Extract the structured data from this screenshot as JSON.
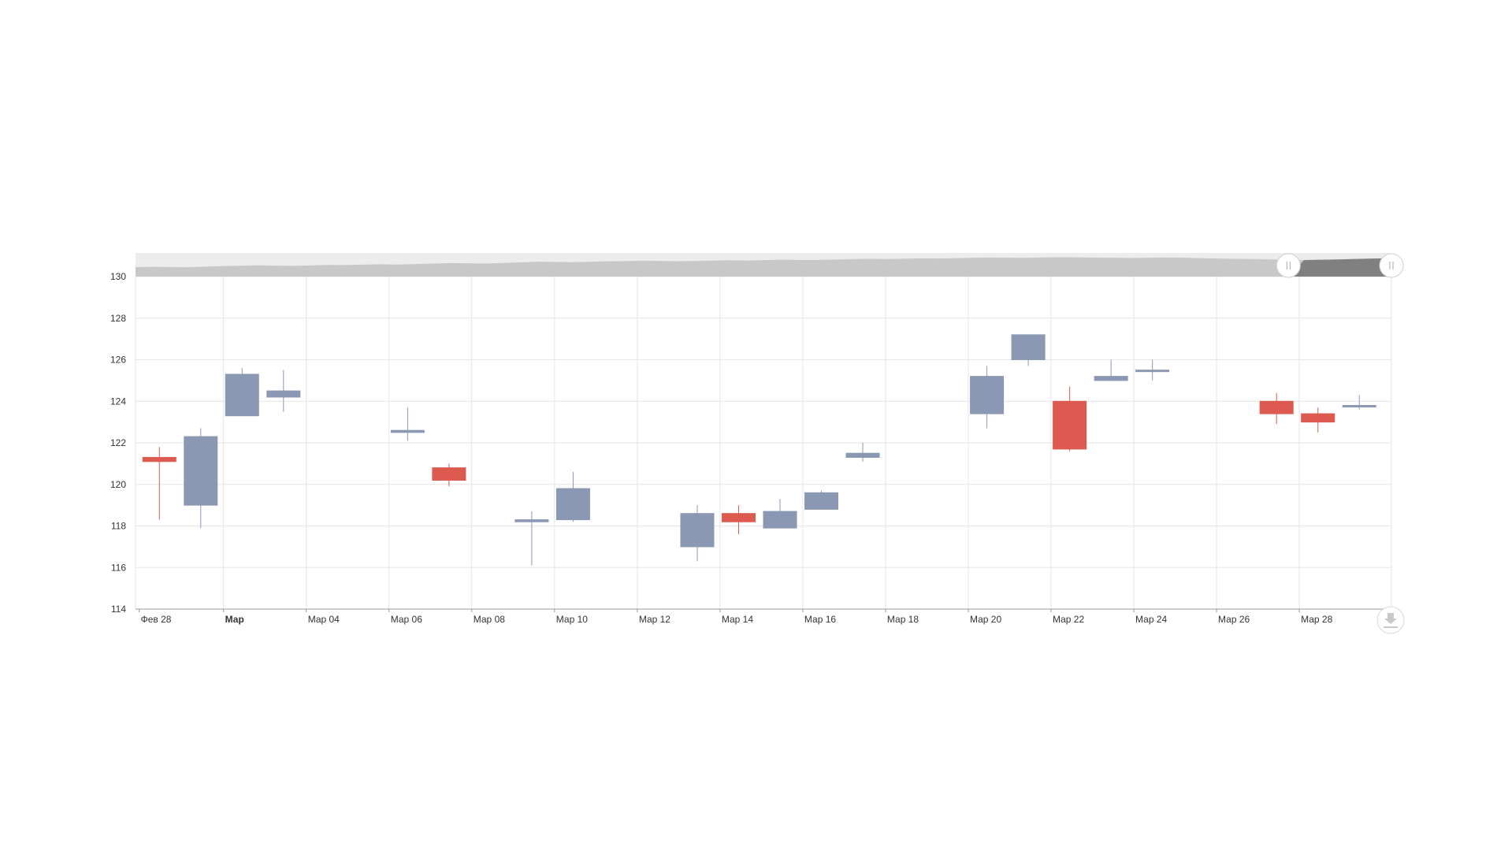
{
  "chart_data": {
    "type": "candlestick",
    "y_ticks": [
      "130",
      "128",
      "126",
      "124",
      "122",
      "120",
      "118",
      "116",
      "114"
    ],
    "ylim": [
      114,
      130
    ],
    "x_ticks": [
      "Фев 28",
      "Мар",
      "Мар 04",
      "Мар 06",
      "Мар 08",
      "Мар 10",
      "Мар 12",
      "Мар 14",
      "Мар 16",
      "Мар 18",
      "Мар 20",
      "Мар 22",
      "Мар 24",
      "Мар 26",
      "Мар 28"
    ],
    "x_tick_bold": [
      false,
      true,
      false,
      false,
      false,
      false,
      false,
      false,
      false,
      false,
      false,
      false,
      false,
      false,
      false
    ],
    "x_day_range": [
      0,
      30
    ],
    "grid": true,
    "colors": {
      "up": "#8b98b3",
      "down": "#dc5a4f",
      "navigator_fill": "#c8c8c8",
      "navigator_selected": "#808080"
    },
    "candles": [
      {
        "day": 0,
        "open": 121.3,
        "high": 121.8,
        "low": 118.3,
        "close": 121.1
      },
      {
        "day": 1,
        "open": 119.0,
        "high": 122.7,
        "low": 117.9,
        "close": 122.3
      },
      {
        "day": 2,
        "open": 123.3,
        "high": 125.6,
        "low": 123.3,
        "close": 125.3
      },
      {
        "day": 3,
        "open": 124.2,
        "high": 125.5,
        "low": 123.5,
        "close": 124.5
      },
      {
        "day": 6,
        "open": 122.5,
        "high": 123.7,
        "low": 122.1,
        "close": 122.6
      },
      {
        "day": 7,
        "open": 120.8,
        "high": 121.0,
        "low": 119.9,
        "close": 120.2
      },
      {
        "day": 9,
        "open": 118.2,
        "high": 118.7,
        "low": 116.1,
        "close": 118.3
      },
      {
        "day": 10,
        "open": 118.3,
        "high": 120.6,
        "low": 118.2,
        "close": 119.8
      },
      {
        "day": 13,
        "open": 117.0,
        "high": 119.0,
        "low": 116.3,
        "close": 118.6
      },
      {
        "day": 14,
        "open": 118.6,
        "high": 119.0,
        "low": 117.6,
        "close": 118.2
      },
      {
        "day": 15,
        "open": 117.9,
        "high": 119.3,
        "low": 117.9,
        "close": 118.7
      },
      {
        "day": 16,
        "open": 118.8,
        "high": 119.7,
        "low": 118.8,
        "close": 119.6
      },
      {
        "day": 17,
        "open": 121.3,
        "high": 122.0,
        "low": 121.1,
        "close": 121.5
      },
      {
        "day": 20,
        "open": 123.4,
        "high": 125.7,
        "low": 122.7,
        "close": 125.2
      },
      {
        "day": 21,
        "open": 126.0,
        "high": 127.2,
        "low": 125.7,
        "close": 127.2
      },
      {
        "day": 22,
        "open": 124.0,
        "high": 124.7,
        "low": 121.6,
        "close": 121.7
      },
      {
        "day": 23,
        "open": 125.0,
        "high": 126.0,
        "low": 125.0,
        "close": 125.2
      },
      {
        "day": 24,
        "open": 125.5,
        "high": 126.0,
        "low": 125.0,
        "close": 125.5
      },
      {
        "day": 27,
        "open": 124.0,
        "high": 124.4,
        "low": 122.9,
        "close": 123.4
      },
      {
        "day": 28,
        "open": 123.4,
        "high": 123.7,
        "low": 122.5,
        "close": 123.0
      },
      {
        "day": 29,
        "open": 123.8,
        "high": 124.3,
        "low": 123.6,
        "close": 123.8
      }
    ],
    "navigator": {
      "selected_range": [
        0.918,
        1.0
      ],
      "series": [
        118,
        118.3,
        118.1,
        117.9,
        118.4,
        118.9,
        119.2,
        119.6,
        119.3,
        119.1,
        119.4,
        119.8,
        119.7,
        120.1,
        120.4,
        120.2,
        120.6,
        121.0,
        121.4,
        121.3,
        121.1,
        121.5,
        122.0,
        122.6,
        122.4,
        122.2,
        122.5,
        122.9,
        123.1,
        123.4,
        123.3,
        123.0,
        123.2,
        123.5,
        123.8,
        123.6,
        123.9,
        124.3,
        124.1,
        124.0,
        124.4,
        124.7,
        125.0,
        124.8,
        125.1,
        125.4,
        125.3,
        125.6,
        125.9,
        126.1,
        126.0,
        125.8,
        126.2,
        126.4,
        126.3,
        126.1,
        125.9,
        125.7,
        125.9,
        126.2,
        126.0,
        125.6,
        125.3,
        125.0,
        124.8,
        124.6,
        124.2,
        124.0,
        124.3,
        124.5,
        124.9,
        125.3,
        125.6
      ]
    }
  },
  "toolbar": {
    "export_icon": "download-icon"
  }
}
